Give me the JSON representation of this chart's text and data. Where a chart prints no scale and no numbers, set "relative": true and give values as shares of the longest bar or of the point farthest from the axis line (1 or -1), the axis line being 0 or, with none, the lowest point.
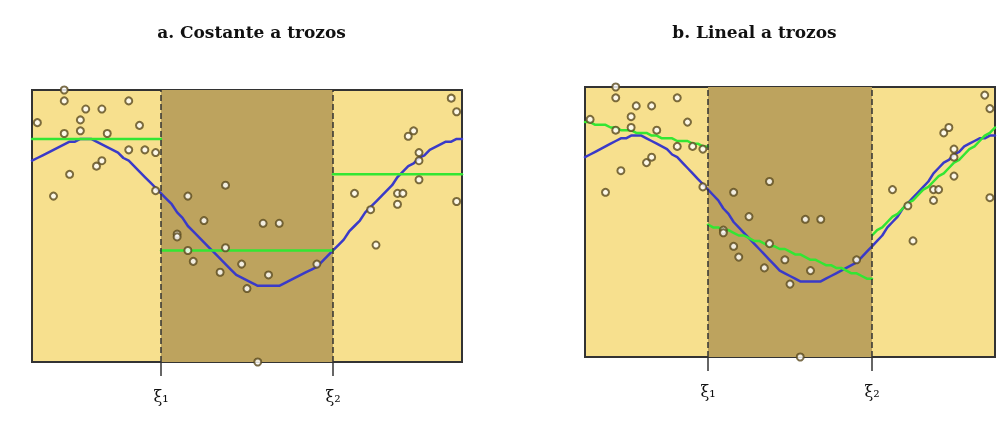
{
  "chart_data": [
    {
      "type": "line",
      "title": "a. Costante a trozos",
      "relative": true,
      "tick_labels": "x",
      "marker": "none",
      "categories": [
        null,
        null,
        null,
        null,
        null,
        null,
        null,
        null,
        null,
        null,
        null,
        null,
        null,
        null,
        null,
        null,
        null,
        null,
        null,
        null,
        null,
        null,
        null,
        null,
        "ξ₁",
        null,
        null,
        null,
        null,
        null,
        null,
        null,
        null,
        null,
        null,
        null,
        null,
        null,
        null,
        null,
        null,
        null,
        null,
        null,
        null,
        null,
        null,
        null,
        null,
        null,
        null,
        null,
        null,
        null,
        null,
        null,
        "ξ₂",
        null,
        null,
        null,
        null,
        null,
        null,
        null,
        null,
        null,
        null,
        null,
        null,
        null,
        null,
        null,
        null,
        null,
        null,
        null,
        null,
        null,
        null,
        null,
        null
      ],
      "bands": [
        {
          "axis": "x",
          "from": "ξ₁",
          "to": "ξ₂",
          "color": "#bda35e"
        }
      ],
      "ref_lines": [
        {
          "axis": "x",
          "value": "ξ₁",
          "color": "#333333",
          "line_style": "dashed"
        },
        {
          "axis": "x",
          "value": "ξ₂",
          "color": "#333333",
          "line_style": "dashed"
        }
      ],
      "series": [
        {
          "type": "scatter",
          "marker": "circle",
          "color": "#5a4a1e",
          "values": [
            null,
            0.88,
            null,
            null,
            0.61,
            null,
            1.0,
            0.69,
            null,
            0.89,
            0.93,
            null,
            0.72,
            0.93,
            0.84,
            null,
            null,
            null,
            0.96,
            null,
            0.87,
            0.78,
            null,
            0.77,
            null,
            null,
            null,
            0.47,
            null,
            0.61,
            0.37,
            null,
            0.52,
            null,
            null,
            0.33,
            0.65,
            null,
            null,
            0.36,
            0.27,
            null,
            0,
            0.51,
            0.32,
            null,
            0.51,
            null,
            null,
            null,
            null,
            null,
            null,
            0.36,
            null,
            null,
            null,
            null,
            null,
            null,
            0.62,
            null,
            null,
            0.56,
            0.43,
            null,
            null,
            null,
            0.62,
            0.62,
            0.83,
            0.85,
            0.67,
            null,
            null,
            null,
            null,
            null,
            0.97,
            0.92,
            null
          ]
        },
        {
          "type": "scatter",
          "marker": "circle",
          "color": "#5a4a1e",
          "values": [
            null,
            null,
            null,
            null,
            null,
            null,
            0.96,
            null,
            null,
            0.85,
            null,
            null,
            null,
            0.74,
            null,
            null,
            null,
            null,
            0.78,
            null,
            null,
            null,
            null,
            0.63,
            null,
            null,
            null,
            0.46,
            null,
            0.41,
            null,
            null,
            null,
            null,
            null,
            null,
            0.42,
            null,
            null,
            null,
            null,
            null,
            null,
            null,
            null,
            null,
            null,
            null,
            null,
            null,
            null,
            null,
            null,
            null,
            null,
            null,
            null,
            null,
            null,
            null,
            null,
            null,
            null,
            null,
            null,
            null,
            null,
            null,
            0.58,
            null,
            null,
            null,
            0.74,
            null,
            null,
            null,
            null,
            null,
            null,
            0.59,
            null
          ]
        },
        {
          "type": "scatter",
          "marker": "circle",
          "color": "#5a4a1e",
          "values": [
            null,
            null,
            null,
            null,
            null,
            null,
            0.84,
            null,
            null,
            null,
            null,
            null,
            null,
            null,
            null,
            null,
            null,
            null,
            null,
            null,
            null,
            null,
            null,
            null,
            null,
            null,
            null,
            null,
            null,
            null,
            null,
            null,
            null,
            null,
            null,
            null,
            null,
            null,
            null,
            null,
            null,
            null,
            null,
            null,
            null,
            null,
            null,
            null,
            null,
            null,
            null,
            null,
            null,
            null,
            null,
            null,
            null,
            null,
            null,
            null,
            null,
            null,
            null,
            null,
            null,
            null,
            null,
            null,
            null,
            null,
            null,
            null,
            0.77,
            null,
            null,
            null,
            null,
            null,
            null,
            null,
            null
          ]
        },
        {
          "type": "line",
          "color": "#3a3ac8",
          "values": [
            0.74,
            0.75,
            0.76,
            0.77,
            0.78,
            0.79,
            0.8,
            0.81,
            0.81,
            0.82,
            0.82,
            0.82,
            0.81,
            0.8,
            0.79,
            0.78,
            0.77,
            0.75,
            0.74,
            0.72,
            0.7,
            0.68,
            0.66,
            0.64,
            0.62,
            0.6,
            0.58,
            0.55,
            0.53,
            0.5,
            0.48,
            0.46,
            0.44,
            0.42,
            0.4,
            0.38,
            0.36,
            0.34,
            0.32,
            0.31,
            0.3,
            0.29,
            0.28,
            0.28,
            0.28,
            0.28,
            0.28,
            0.29,
            0.3,
            0.31,
            0.32,
            0.33,
            0.34,
            0.35,
            0.37,
            0.39,
            0.41,
            0.43,
            0.45,
            0.48,
            0.5,
            0.52,
            0.55,
            0.57,
            0.59,
            0.61,
            0.63,
            0.65,
            0.68,
            0.7,
            0.72,
            0.73,
            0.75,
            0.76,
            0.78,
            0.79,
            0.8,
            0.81,
            0.81,
            0.82,
            0.82
          ]
        },
        {
          "type": "line",
          "color": "#33e633",
          "values": [
            0.82,
            0.82,
            0.82,
            0.82,
            0.82,
            0.82,
            0.82,
            0.82,
            0.82,
            0.82,
            0.82,
            0.82,
            0.82,
            0.82,
            0.82,
            0.82,
            0.82,
            0.82,
            0.82,
            0.82,
            0.82,
            0.82,
            0.82,
            0.82,
            0.82,
            null,
            null,
            null,
            null,
            null,
            null,
            null,
            null,
            null,
            null,
            null,
            null,
            null,
            null,
            null,
            null,
            null,
            null,
            null,
            null,
            null,
            null,
            null,
            null,
            null,
            null,
            null,
            null,
            null,
            null,
            null,
            null,
            null,
            null,
            null,
            null,
            null,
            null,
            null,
            null,
            null,
            null,
            null,
            null,
            null,
            null,
            null,
            null,
            null,
            null,
            null,
            null,
            null,
            null,
            null,
            null
          ]
        },
        {
          "type": "line",
          "color": "#33e633",
          "values": [
            null,
            null,
            null,
            null,
            null,
            null,
            null,
            null,
            null,
            null,
            null,
            null,
            null,
            null,
            null,
            null,
            null,
            null,
            null,
            null,
            null,
            null,
            null,
            null,
            0.41,
            0.41,
            0.41,
            0.41,
            0.41,
            0.41,
            0.41,
            0.41,
            0.41,
            0.41,
            0.41,
            0.41,
            0.41,
            0.41,
            0.41,
            0.41,
            0.41,
            0.41,
            0.41,
            0.41,
            0.41,
            0.41,
            0.41,
            0.41,
            0.41,
            0.41,
            0.41,
            0.41,
            0.41,
            0.41,
            0.41,
            0.41,
            0.41,
            null,
            null,
            null,
            null,
            null,
            null,
            null,
            null,
            null,
            null,
            null,
            null,
            null,
            null,
            null,
            null,
            null,
            null,
            null,
            null,
            null,
            null,
            null,
            null
          ]
        },
        {
          "type": "line",
          "color": "#33e633",
          "values": [
            null,
            null,
            null,
            null,
            null,
            null,
            null,
            null,
            null,
            null,
            null,
            null,
            null,
            null,
            null,
            null,
            null,
            null,
            null,
            null,
            null,
            null,
            null,
            null,
            null,
            null,
            null,
            null,
            null,
            null,
            null,
            null,
            null,
            null,
            null,
            null,
            null,
            null,
            null,
            null,
            null,
            null,
            null,
            null,
            null,
            null,
            null,
            null,
            null,
            null,
            null,
            null,
            null,
            null,
            null,
            null,
            0.69,
            0.69,
            0.69,
            0.69,
            0.69,
            0.69,
            0.69,
            0.69,
            0.69,
            0.69,
            0.69,
            0.69,
            0.69,
            0.69,
            0.69,
            0.69,
            0.69,
            0.69,
            0.69,
            0.69,
            0.69,
            0.69,
            0.69,
            0.69,
            0.69
          ]
        }
      ]
    },
    {
      "type": "line",
      "title": "b. Lineal a trozos",
      "relative": true,
      "tick_labels": "x",
      "marker": "none",
      "categories": [
        null,
        null,
        null,
        null,
        null,
        null,
        null,
        null,
        null,
        null,
        null,
        null,
        null,
        null,
        null,
        null,
        null,
        null,
        null,
        null,
        null,
        null,
        null,
        null,
        "ξ₁",
        null,
        null,
        null,
        null,
        null,
        null,
        null,
        null,
        null,
        null,
        null,
        null,
        null,
        null,
        null,
        null,
        null,
        null,
        null,
        null,
        null,
        null,
        null,
        null,
        null,
        null,
        null,
        null,
        null,
        null,
        null,
        "ξ₂",
        null,
        null,
        null,
        null,
        null,
        null,
        null,
        null,
        null,
        null,
        null,
        null,
        null,
        null,
        null,
        null,
        null,
        null,
        null,
        null,
        null,
        null,
        null,
        null
      ],
      "bands": [
        {
          "axis": "x",
          "from": "ξ₁",
          "to": "ξ₂",
          "color": "#bda35e"
        }
      ],
      "ref_lines": [
        {
          "axis": "x",
          "value": "ξ₁",
          "color": "#333333",
          "line_style": "dashed"
        },
        {
          "axis": "x",
          "value": "ξ₂",
          "color": "#333333",
          "line_style": "dashed"
        }
      ],
      "series": [
        {
          "type": "scatter",
          "marker": "circle",
          "color": "#5a4a1e",
          "values": [
            null,
            0.88,
            null,
            null,
            0.61,
            null,
            1.0,
            0.69,
            null,
            0.89,
            0.93,
            null,
            0.72,
            0.93,
            0.84,
            null,
            null,
            null,
            0.96,
            null,
            0.87,
            0.78,
            null,
            0.77,
            null,
            null,
            null,
            0.47,
            null,
            0.61,
            0.37,
            null,
            0.52,
            null,
            null,
            0.33,
            0.65,
            null,
            null,
            0.36,
            0.27,
            null,
            0,
            0.51,
            0.32,
            null,
            0.51,
            null,
            null,
            null,
            null,
            null,
            null,
            0.36,
            null,
            null,
            null,
            null,
            null,
            null,
            0.62,
            null,
            null,
            0.56,
            0.43,
            null,
            null,
            null,
            0.62,
            0.62,
            0.83,
            0.85,
            0.67,
            null,
            null,
            null,
            null,
            null,
            0.97,
            0.92,
            null
          ]
        },
        {
          "type": "scatter",
          "marker": "circle",
          "color": "#5a4a1e",
          "values": [
            null,
            null,
            null,
            null,
            null,
            null,
            0.96,
            null,
            null,
            0.85,
            null,
            null,
            null,
            0.74,
            null,
            null,
            null,
            null,
            0.78,
            null,
            null,
            null,
            null,
            0.63,
            null,
            null,
            null,
            0.46,
            null,
            0.41,
            null,
            null,
            null,
            null,
            null,
            null,
            0.42,
            null,
            null,
            null,
            null,
            null,
            null,
            null,
            null,
            null,
            null,
            null,
            null,
            null,
            null,
            null,
            null,
            null,
            null,
            null,
            null,
            null,
            null,
            null,
            null,
            null,
            null,
            null,
            null,
            null,
            null,
            null,
            0.58,
            null,
            null,
            null,
            0.74,
            null,
            null,
            null,
            null,
            null,
            null,
            0.59,
            null
          ]
        },
        {
          "type": "scatter",
          "marker": "circle",
          "color": "#5a4a1e",
          "values": [
            null,
            null,
            null,
            null,
            null,
            null,
            0.84,
            null,
            null,
            null,
            null,
            null,
            null,
            null,
            null,
            null,
            null,
            null,
            null,
            null,
            null,
            null,
            null,
            null,
            null,
            null,
            null,
            null,
            null,
            null,
            null,
            null,
            null,
            null,
            null,
            null,
            null,
            null,
            null,
            null,
            null,
            null,
            null,
            null,
            null,
            null,
            null,
            null,
            null,
            null,
            null,
            null,
            null,
            null,
            null,
            null,
            null,
            null,
            null,
            null,
            null,
            null,
            null,
            null,
            null,
            null,
            null,
            null,
            null,
            null,
            null,
            null,
            0.77,
            null,
            null,
            null,
            null,
            null,
            null,
            null,
            null
          ]
        },
        {
          "type": "line",
          "color": "#3a3ac8",
          "values": [
            0.74,
            0.75,
            0.76,
            0.77,
            0.78,
            0.79,
            0.8,
            0.81,
            0.81,
            0.82,
            0.82,
            0.82,
            0.81,
            0.8,
            0.79,
            0.78,
            0.77,
            0.75,
            0.74,
            0.72,
            0.7,
            0.68,
            0.66,
            0.64,
            0.62,
            0.6,
            0.58,
            0.55,
            0.53,
            0.5,
            0.48,
            0.46,
            0.44,
            0.42,
            0.4,
            0.38,
            0.36,
            0.34,
            0.32,
            0.31,
            0.3,
            0.29,
            0.28,
            0.28,
            0.28,
            0.28,
            0.28,
            0.29,
            0.3,
            0.31,
            0.32,
            0.33,
            0.34,
            0.35,
            0.37,
            0.39,
            0.41,
            0.43,
            0.45,
            0.48,
            0.5,
            0.52,
            0.55,
            0.57,
            0.59,
            0.61,
            0.63,
            0.65,
            0.68,
            0.7,
            0.72,
            0.73,
            0.75,
            0.76,
            0.78,
            0.79,
            0.8,
            0.81,
            0.81,
            0.82,
            0.82
          ]
        },
        {
          "type": "line",
          "color": "#33e633",
          "values": [
            0.87,
            0.87,
            0.86,
            0.86,
            0.86,
            0.85,
            0.85,
            0.84,
            0.84,
            0.84,
            0.83,
            0.83,
            0.83,
            0.82,
            0.82,
            0.81,
            0.81,
            0.81,
            0.8,
            0.8,
            0.8,
            0.79,
            0.79,
            0.78,
            0.78,
            null,
            null,
            null,
            null,
            null,
            null,
            null,
            null,
            null,
            null,
            null,
            null,
            null,
            null,
            null,
            null,
            null,
            null,
            null,
            null,
            null,
            null,
            null,
            null,
            null,
            null,
            null,
            null,
            null,
            null,
            null,
            null,
            null,
            null,
            null,
            null,
            null,
            null,
            null,
            null,
            null,
            null,
            null,
            null,
            null,
            null,
            null,
            null,
            null,
            null,
            null,
            null,
            null,
            null,
            null,
            null
          ]
        },
        {
          "type": "line",
          "color": "#33e633",
          "values": [
            null,
            null,
            null,
            null,
            null,
            null,
            null,
            null,
            null,
            null,
            null,
            null,
            null,
            null,
            null,
            null,
            null,
            null,
            null,
            null,
            null,
            null,
            null,
            null,
            0.49,
            0.48,
            0.48,
            0.47,
            0.47,
            0.46,
            0.45,
            0.45,
            0.44,
            0.43,
            0.43,
            0.42,
            0.41,
            0.41,
            0.4,
            0.4,
            0.39,
            0.38,
            0.38,
            0.37,
            0.36,
            0.36,
            0.35,
            0.34,
            0.34,
            0.33,
            0.33,
            0.32,
            0.31,
            0.31,
            0.3,
            0.29,
            0.29,
            null,
            null,
            null,
            null,
            null,
            null,
            null,
            null,
            null,
            null,
            null,
            null,
            null,
            null,
            null,
            null,
            null,
            null,
            null,
            null,
            null,
            null,
            null,
            null
          ]
        },
        {
          "type": "line",
          "color": "#33e633",
          "values": [
            null,
            null,
            null,
            null,
            null,
            null,
            null,
            null,
            null,
            null,
            null,
            null,
            null,
            null,
            null,
            null,
            null,
            null,
            null,
            null,
            null,
            null,
            null,
            null,
            null,
            null,
            null,
            null,
            null,
            null,
            null,
            null,
            null,
            null,
            null,
            null,
            null,
            null,
            null,
            null,
            null,
            null,
            null,
            null,
            null,
            null,
            null,
            null,
            null,
            null,
            null,
            null,
            null,
            null,
            null,
            null,
            0.45,
            0.47,
            0.48,
            0.5,
            0.52,
            0.53,
            0.55,
            0.57,
            0.58,
            0.6,
            0.62,
            0.63,
            0.65,
            0.67,
            0.68,
            0.7,
            0.72,
            0.73,
            0.75,
            0.77,
            0.78,
            0.8,
            0.82,
            0.83,
            0.85
          ]
        }
      ]
    }
  ]
}
